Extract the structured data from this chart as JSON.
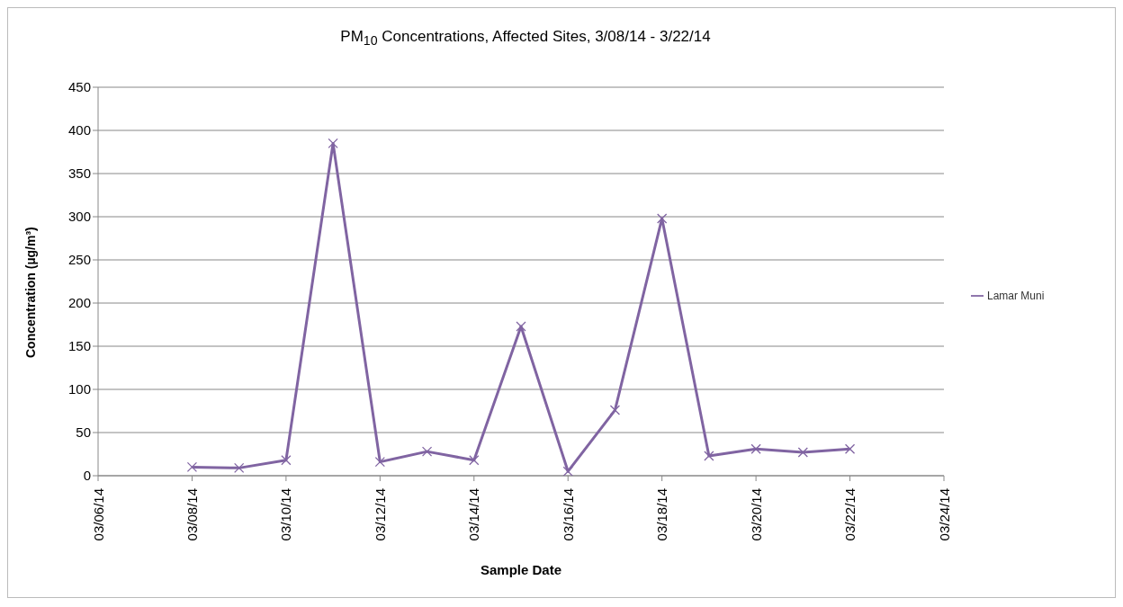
{
  "chart_data": {
    "type": "line",
    "title": "PM$_{10}$ Concentrations, Affected Sites, 3/08/14 - 3/22/14",
    "xlabel": "Sample Date",
    "ylabel": "Concentration (µg/m³)",
    "x": [
      "--03-08",
      "--03-09",
      "--03-10",
      "--03-11",
      "--03-12",
      "--03-13",
      "--03-14",
      "--03-15",
      "--03-16",
      "--03-17",
      "--03-18",
      "--03-19",
      "--03-20",
      "--03-21",
      "--03-22"
    ],
    "series": [
      {
        "name": "Lamar Muni",
        "color": "#8064a2",
        "values": [
          10,
          9,
          18,
          385,
          16,
          28,
          18,
          173,
          5,
          76,
          298,
          23,
          31,
          27,
          31
        ]
      }
    ],
    "xlim": [
      "--03-06",
      "--03-24"
    ],
    "xticks": [
      {
        "value": "--03-06",
        "label": "03/06/14"
      },
      {
        "value": "--03-08",
        "label": "03/08/14"
      },
      {
        "value": "--03-10",
        "label": "03/10/14"
      },
      {
        "value": "--03-12",
        "label": "03/12/14"
      },
      {
        "value": "--03-14",
        "label": "03/14/14"
      },
      {
        "value": "--03-16",
        "label": "03/16/14"
      },
      {
        "value": "--03-18",
        "label": "03/18/14"
      },
      {
        "value": "--03-20",
        "label": "03/20/14"
      },
      {
        "value": "--03-22",
        "label": "03/22/14"
      },
      {
        "value": "--03-24",
        "label": "03/24/14"
      }
    ],
    "ylim": [
      0,
      450
    ],
    "yticks": [
      0,
      50,
      100,
      150,
      200,
      250,
      300,
      350,
      400,
      450
    ],
    "grid": "y",
    "legend": "right",
    "marker": "cross",
    "line_style": "solid"
  }
}
